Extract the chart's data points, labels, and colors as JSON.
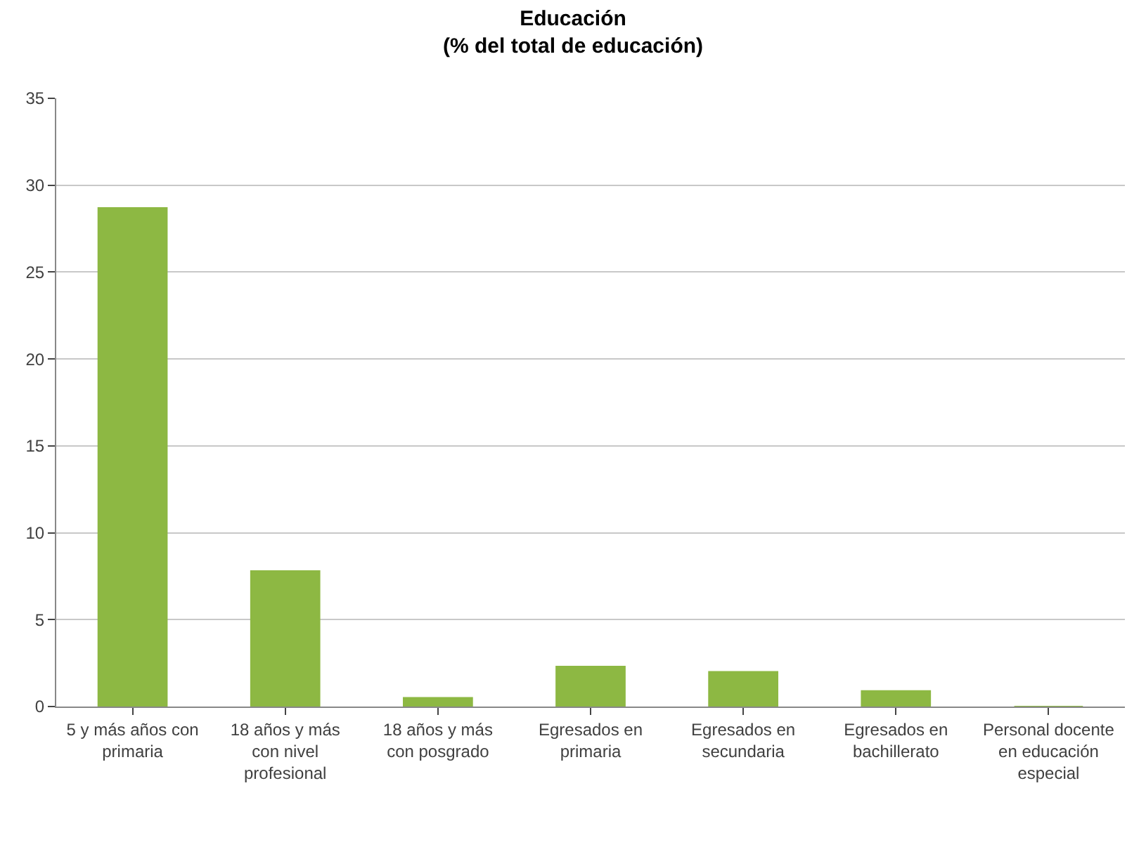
{
  "chart_data": {
    "type": "bar",
    "title": "Educación\n(% del total de educación)",
    "categories": [
      "5 y más años con primaria",
      "18 años y más con nivel profesional",
      "18 años y más con posgrado",
      "Egresados en primaria",
      "Egresados en secundaria",
      "Egresados en bachillerato",
      "Personal docente en educación especial"
    ],
    "values": [
      28.7,
      7.8,
      0.5,
      2.3,
      2.0,
      0.9,
      0
    ],
    "color": "#8db843",
    "ylim": [
      0,
      35
    ],
    "yticks": [
      0,
      5,
      10,
      15,
      20,
      25,
      30,
      35
    ],
    "grid": "y",
    "legend": false
  }
}
